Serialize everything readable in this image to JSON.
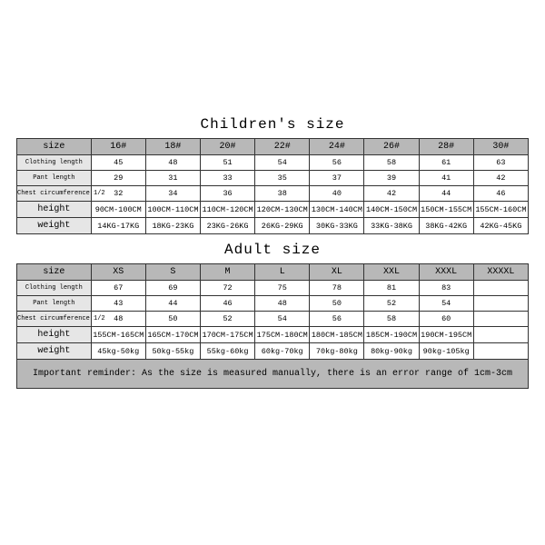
{
  "colors": {
    "header_bg": "#b8b8b8",
    "label_bg": "#e6e6e6",
    "cell_bg": "#ffffff",
    "border": "#333333",
    "page_bg": "#ffffff",
    "text": "#000000"
  },
  "typography": {
    "family": "Courier New, monospace",
    "title_fontsize_pt": 12,
    "cell_fontsize_pt": 6.5,
    "small_label_fontsize_pt": 5.5,
    "reminder_fontsize_pt": 7.5
  },
  "layout": {
    "first_col_width_pct": 14.5,
    "data_col_width_pct": 10.68,
    "data_cols": 8
  },
  "children": {
    "title": "Children's size",
    "headers": [
      "size",
      "16#",
      "18#",
      "20#",
      "22#",
      "24#",
      "26#",
      "28#",
      "30#"
    ],
    "rows": [
      {
        "label": "Clothing length",
        "label_class": "lbl",
        "values": [
          "45",
          "48",
          "51",
          "54",
          "56",
          "58",
          "61",
          "63"
        ]
      },
      {
        "label": "Pant length",
        "label_class": "lbl",
        "values": [
          "29",
          "31",
          "33",
          "35",
          "37",
          "39",
          "41",
          "42"
        ]
      },
      {
        "label": "Chest circumference 1/2",
        "label_class": "lbl",
        "values": [
          "32",
          "34",
          "36",
          "38",
          "40",
          "42",
          "44",
          "46"
        ]
      },
      {
        "label": "height",
        "label_class": "lbl-big",
        "values": [
          "90CM-100CM",
          "100CM-110CM",
          "110CM-120CM",
          "120CM-130CM",
          "130CM-140CM",
          "140CM-150CM",
          "150CM-155CM",
          "155CM-160CM"
        ]
      },
      {
        "label": "weight",
        "label_class": "lbl-big",
        "values": [
          "14KG-17KG",
          "18KG-23KG",
          "23KG-26KG",
          "26KG-29KG",
          "30KG-33KG",
          "33KG-38KG",
          "38KG-42KG",
          "42KG-45KG"
        ]
      }
    ]
  },
  "adult": {
    "title": "Adult size",
    "headers": [
      "size",
      "XS",
      "S",
      "M",
      "L",
      "XL",
      "XXL",
      "XXXL",
      "XXXXL"
    ],
    "rows": [
      {
        "label": "Clothing length",
        "label_class": "lbl",
        "values": [
          "67",
          "69",
          "72",
          "75",
          "78",
          "81",
          "83",
          ""
        ]
      },
      {
        "label": "Pant length",
        "label_class": "lbl",
        "values": [
          "43",
          "44",
          "46",
          "48",
          "50",
          "52",
          "54",
          ""
        ]
      },
      {
        "label": "Chest circumference 1/2",
        "label_class": "lbl",
        "values": [
          "48",
          "50",
          "52",
          "54",
          "56",
          "58",
          "60",
          ""
        ]
      },
      {
        "label": "height",
        "label_class": "lbl-big",
        "values": [
          "155CM-165CM",
          "165CM-170CM",
          "170CM-175CM",
          "175CM-180CM",
          "180CM-185CM",
          "185CM-190CM",
          "190CM-195CM",
          ""
        ]
      },
      {
        "label": "weight",
        "label_class": "lbl-big",
        "values": [
          "45kg-50kg",
          "50kg-55kg",
          "55kg-60kg",
          "60kg-70kg",
          "70kg-80kg",
          "80kg-90kg",
          "90kg-105kg",
          ""
        ]
      }
    ]
  },
  "reminder": "Important reminder: As the size is measured manually, there is an error range of 1cm-3cm"
}
